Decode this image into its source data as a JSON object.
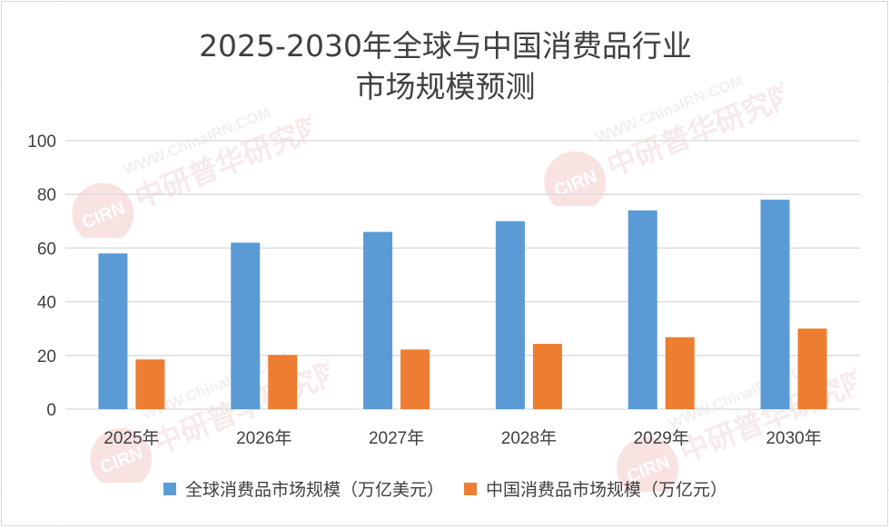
{
  "colors": {
    "series_global": "#5b9bd5",
    "series_china": "#ed7d31",
    "axis_text": "#404040",
    "gridline": "#d9d9d9"
  },
  "watermark": {
    "url": "WWW.ChinaIRN.COM",
    "text": "中研普华研究院",
    "logo": "CIRN"
  },
  "chart_data": {
    "type": "bar",
    "title": "2025-2030年全球与中国消费品行业市场规模预测",
    "title_lines": [
      "2025-2030年全球与中国消费品行业",
      "市场规模预测"
    ],
    "categories": [
      "2025年",
      "2026年",
      "2027年",
      "2028年",
      "2029年",
      "2030年"
    ],
    "series": [
      {
        "name": "全球消费品市场规模（万亿美元）",
        "values": [
          58,
          62,
          66,
          70,
          74,
          78
        ]
      },
      {
        "name": "中国消费品市场规模（万亿元）",
        "values": [
          18.5,
          20.2,
          22.2,
          24.3,
          26.8,
          30
        ]
      }
    ],
    "yticks": [
      "0",
      "20",
      "40",
      "60",
      "80",
      "100"
    ],
    "ylim": [
      0,
      100
    ],
    "xlabel": "",
    "ylabel": "",
    "grid": true,
    "legend_position": "bottom"
  }
}
